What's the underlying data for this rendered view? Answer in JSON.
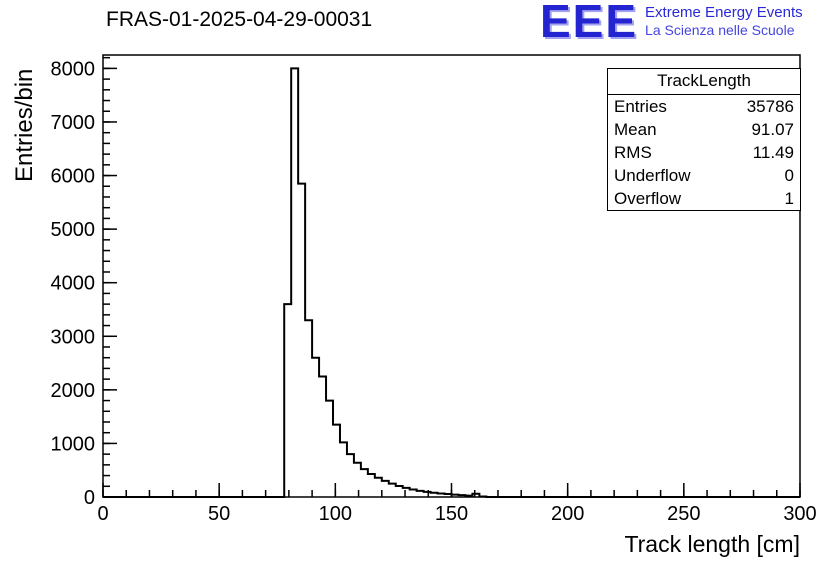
{
  "title": "FRAS-01-2025-04-29-00031",
  "logo": {
    "letters": "EEE",
    "line1": "Extreme Energy Events",
    "line2": "La Scienza nelle Scuole",
    "color": "#2424d0"
  },
  "stats": {
    "header": "TrackLength",
    "rows": [
      {
        "label": "Entries",
        "value": "35786"
      },
      {
        "label": "Mean",
        "value": "91.07"
      },
      {
        "label": "RMS",
        "value": "11.49"
      },
      {
        "label": "Underflow",
        "value": "0"
      },
      {
        "label": "Overflow",
        "value": "1"
      }
    ]
  },
  "chart_data": {
    "type": "bar",
    "title": "FRAS-01-2025-04-29-00031",
    "xlabel": "Track length [cm]",
    "ylabel": "Entries/bin",
    "xlim": [
      0,
      300
    ],
    "ylim": [
      0,
      8250
    ],
    "x_major_ticks": [
      0,
      50,
      100,
      150,
      200,
      250,
      300
    ],
    "y_major_ticks": [
      0,
      1000,
      2000,
      3000,
      4000,
      5000,
      6000,
      7000,
      8000
    ],
    "x_minor_step": 10,
    "y_minor_step": 200,
    "grid": false,
    "legend": false,
    "line_color": "#000000",
    "bin_start": 78,
    "bin_width": 3,
    "values": [
      3600,
      8000,
      5850,
      3300,
      2600,
      2250,
      1800,
      1350,
      1020,
      800,
      640,
      520,
      430,
      360,
      300,
      250,
      205,
      170,
      140,
      115,
      95,
      80,
      65,
      55,
      45,
      35,
      25,
      60,
      10
    ]
  }
}
